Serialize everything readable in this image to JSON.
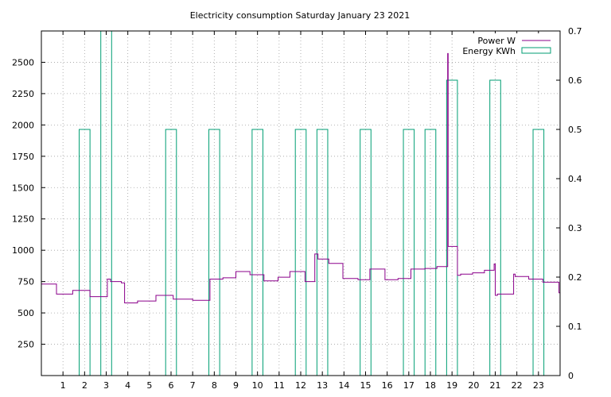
{
  "colors": {
    "power": "#8b008b",
    "energy": "#009e73",
    "grid": "#a0a0a0",
    "frame": "#000000"
  },
  "chart_data": {
    "type": "line",
    "title": "Electricity consumption Saturday January 23 2021",
    "xlim": [
      0,
      24
    ],
    "x_ticks": [
      1,
      2,
      3,
      4,
      5,
      6,
      7,
      8,
      9,
      10,
      11,
      12,
      13,
      14,
      15,
      16,
      17,
      18,
      19,
      20,
      21,
      22,
      23
    ],
    "y_left": {
      "ylim": [
        0,
        2750
      ],
      "ticks": [
        250,
        500,
        750,
        1000,
        1250,
        1500,
        1750,
        2000,
        2250,
        2500
      ]
    },
    "y_right": {
      "ylim": [
        0,
        0.7
      ],
      "ticks": [
        0,
        0.1,
        0.2,
        0.3,
        0.4,
        0.5,
        0.6,
        0.7
      ]
    },
    "grid": true,
    "legend_position": "top-right",
    "series": [
      {
        "name": "Power W",
        "style": "step",
        "axis": "left",
        "points": [
          [
            0,
            730
          ],
          [
            0.7,
            730
          ],
          [
            0.7,
            650
          ],
          [
            1.45,
            650
          ],
          [
            1.45,
            680
          ],
          [
            2.25,
            680
          ],
          [
            2.25,
            630
          ],
          [
            3.05,
            630
          ],
          [
            3.05,
            770
          ],
          [
            3.2,
            770
          ],
          [
            3.2,
            750
          ],
          [
            3.7,
            750
          ],
          [
            3.7,
            740
          ],
          [
            3.85,
            740
          ],
          [
            3.85,
            580
          ],
          [
            4.45,
            580
          ],
          [
            4.45,
            595
          ],
          [
            5.3,
            595
          ],
          [
            5.3,
            640
          ],
          [
            6.1,
            640
          ],
          [
            6.1,
            610
          ],
          [
            7.0,
            610
          ],
          [
            7.0,
            600
          ],
          [
            7.8,
            600
          ],
          [
            7.8,
            770
          ],
          [
            8.4,
            770
          ],
          [
            8.4,
            780
          ],
          [
            9.0,
            780
          ],
          [
            9.0,
            830
          ],
          [
            9.65,
            830
          ],
          [
            9.65,
            805
          ],
          [
            10.3,
            805
          ],
          [
            10.3,
            755
          ],
          [
            10.95,
            755
          ],
          [
            10.95,
            785
          ],
          [
            11.5,
            785
          ],
          [
            11.5,
            830
          ],
          [
            12.2,
            830
          ],
          [
            12.2,
            750
          ],
          [
            12.65,
            750
          ],
          [
            12.65,
            970
          ],
          [
            12.8,
            970
          ],
          [
            12.8,
            930
          ],
          [
            13.3,
            930
          ],
          [
            13.3,
            895
          ],
          [
            13.95,
            895
          ],
          [
            13.95,
            775
          ],
          [
            14.65,
            775
          ],
          [
            14.65,
            765
          ],
          [
            15.2,
            765
          ],
          [
            15.2,
            850
          ],
          [
            15.9,
            850
          ],
          [
            15.9,
            765
          ],
          [
            16.5,
            765
          ],
          [
            16.5,
            775
          ],
          [
            17.1,
            775
          ],
          [
            17.1,
            850
          ],
          [
            17.75,
            850
          ],
          [
            17.75,
            855
          ],
          [
            18.3,
            855
          ],
          [
            18.3,
            870
          ],
          [
            18.8,
            870
          ],
          [
            18.8,
            2570
          ],
          [
            18.82,
            2570
          ],
          [
            18.82,
            1030
          ],
          [
            19.25,
            1030
          ],
          [
            19.25,
            800
          ],
          [
            19.4,
            800
          ],
          [
            19.4,
            810
          ],
          [
            19.95,
            810
          ],
          [
            19.95,
            820
          ],
          [
            20.5,
            820
          ],
          [
            20.5,
            840
          ],
          [
            20.95,
            840
          ],
          [
            20.95,
            890
          ],
          [
            21.0,
            890
          ],
          [
            21.0,
            640
          ],
          [
            21.1,
            640
          ],
          [
            21.1,
            650
          ],
          [
            21.85,
            650
          ],
          [
            21.85,
            810
          ],
          [
            21.92,
            810
          ],
          [
            21.92,
            790
          ],
          [
            22.55,
            790
          ],
          [
            22.55,
            770
          ],
          [
            23.2,
            770
          ],
          [
            23.2,
            745
          ],
          [
            23.95,
            745
          ],
          [
            23.95,
            660
          ],
          [
            24,
            660
          ]
        ]
      },
      {
        "name": "Energy KWh",
        "style": "boxes",
        "axis": "right",
        "boxes": [
          [
            1.75,
            2.25,
            0.5
          ],
          [
            2.75,
            3.25,
            0.7
          ],
          [
            5.75,
            6.25,
            0.5
          ],
          [
            7.75,
            8.25,
            0.5
          ],
          [
            9.75,
            10.25,
            0.5
          ],
          [
            11.75,
            12.25,
            0.5
          ],
          [
            12.75,
            13.25,
            0.5
          ],
          [
            14.75,
            15.25,
            0.5
          ],
          [
            16.75,
            17.25,
            0.5
          ],
          [
            17.75,
            18.25,
            0.5
          ],
          [
            18.75,
            19.25,
            0.6
          ],
          [
            20.75,
            21.25,
            0.6
          ],
          [
            22.75,
            23.25,
            0.5
          ]
        ]
      }
    ]
  }
}
